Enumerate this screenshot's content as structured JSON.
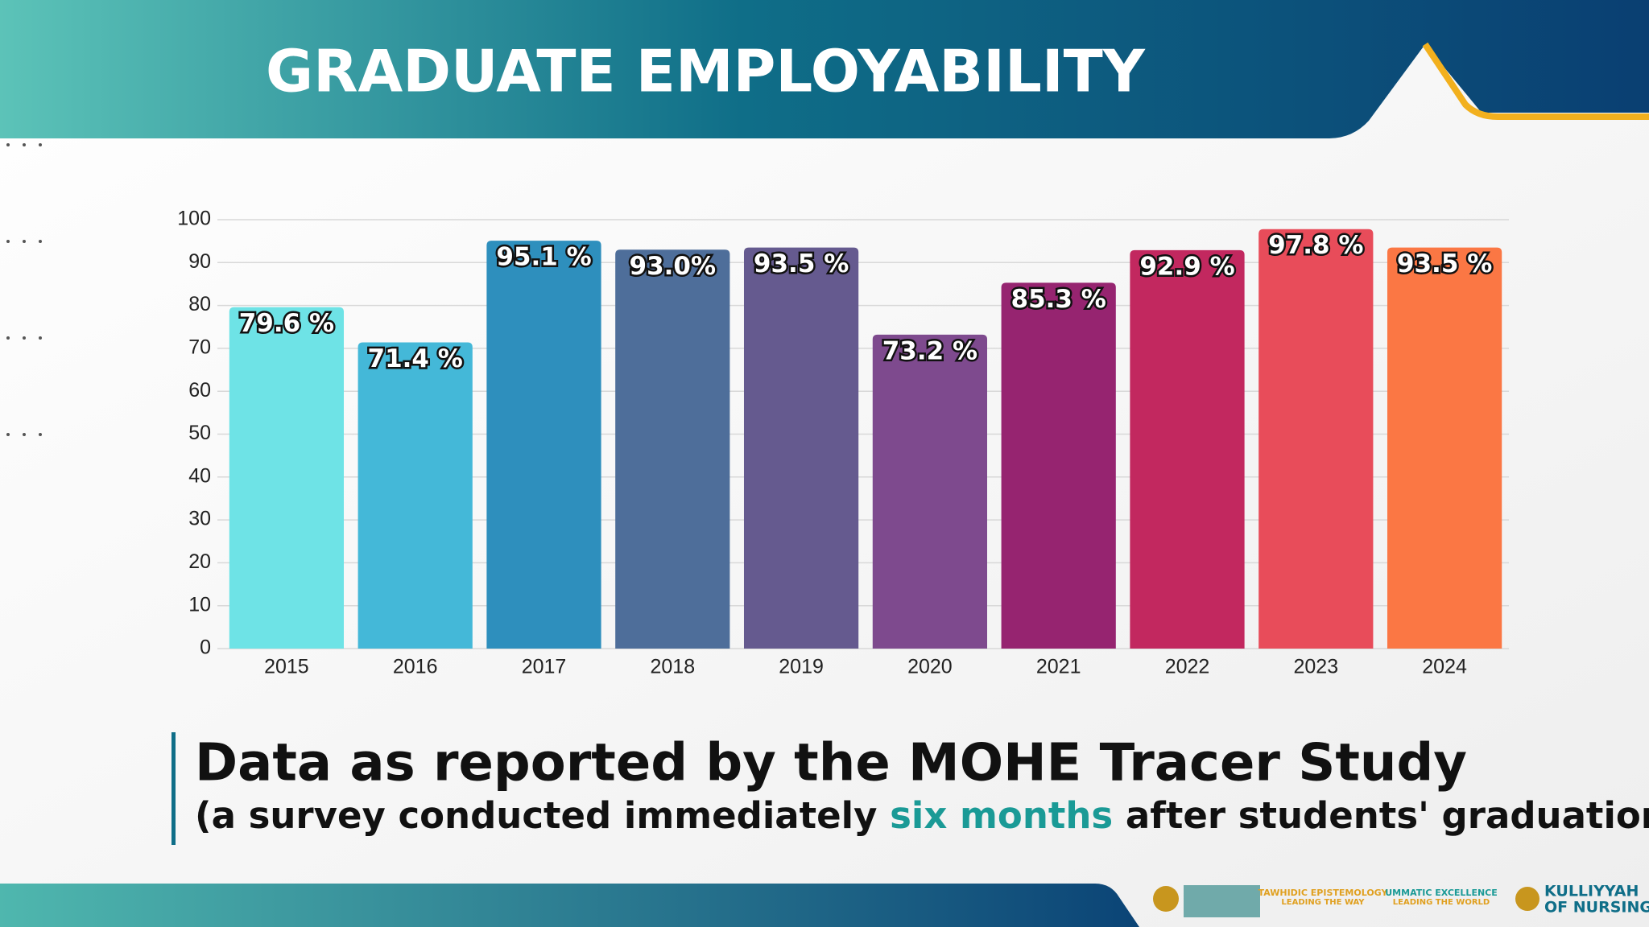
{
  "header": {
    "title": "GRADUATE EMPLOYABILITY"
  },
  "chart_data": {
    "type": "bar",
    "categories": [
      "2015",
      "2016",
      "2017",
      "2018",
      "2019",
      "2020",
      "2021",
      "2022",
      "2023",
      "2024"
    ],
    "values": [
      79.6,
      71.4,
      95.1,
      93.0,
      93.5,
      73.2,
      85.3,
      92.9,
      97.8,
      93.5
    ],
    "value_labels": [
      "79.6 %",
      "71.4 %",
      "95.1 %",
      "93.0%",
      "93.5 %",
      "73.2 %",
      "85.3 %",
      "92.9 %",
      "97.8 %",
      "93.5 %"
    ],
    "colors": [
      "#6ee3e6",
      "#44b8d8",
      "#2e8fbd",
      "#4e6e9a",
      "#655a8f",
      "#7e4a8e",
      "#962470",
      "#c2285f",
      "#e84c5a",
      "#fb7744"
    ],
    "ylim": [
      0,
      100
    ],
    "yticks": [
      0,
      10,
      20,
      30,
      40,
      50,
      60,
      70,
      80,
      90,
      100
    ],
    "grid": true
  },
  "caption": {
    "line1": "Data as reported by the MOHE Tracer Study",
    "line2_before": "(a survey conducted immediately",
    "line2_highlight": "six months",
    "line2_after": "after students' graduation)"
  },
  "footer": {
    "motto1": "TAWHIDIC EPISTEMOLOGY",
    "motto1_sub": "LEADING THE WAY",
    "motto2": "UMMATIC EXCELLENCE",
    "motto2_sub": "LEADING THE WORLD",
    "brand1": "KULLIYYAH",
    "brand2": "OF NURSING"
  }
}
